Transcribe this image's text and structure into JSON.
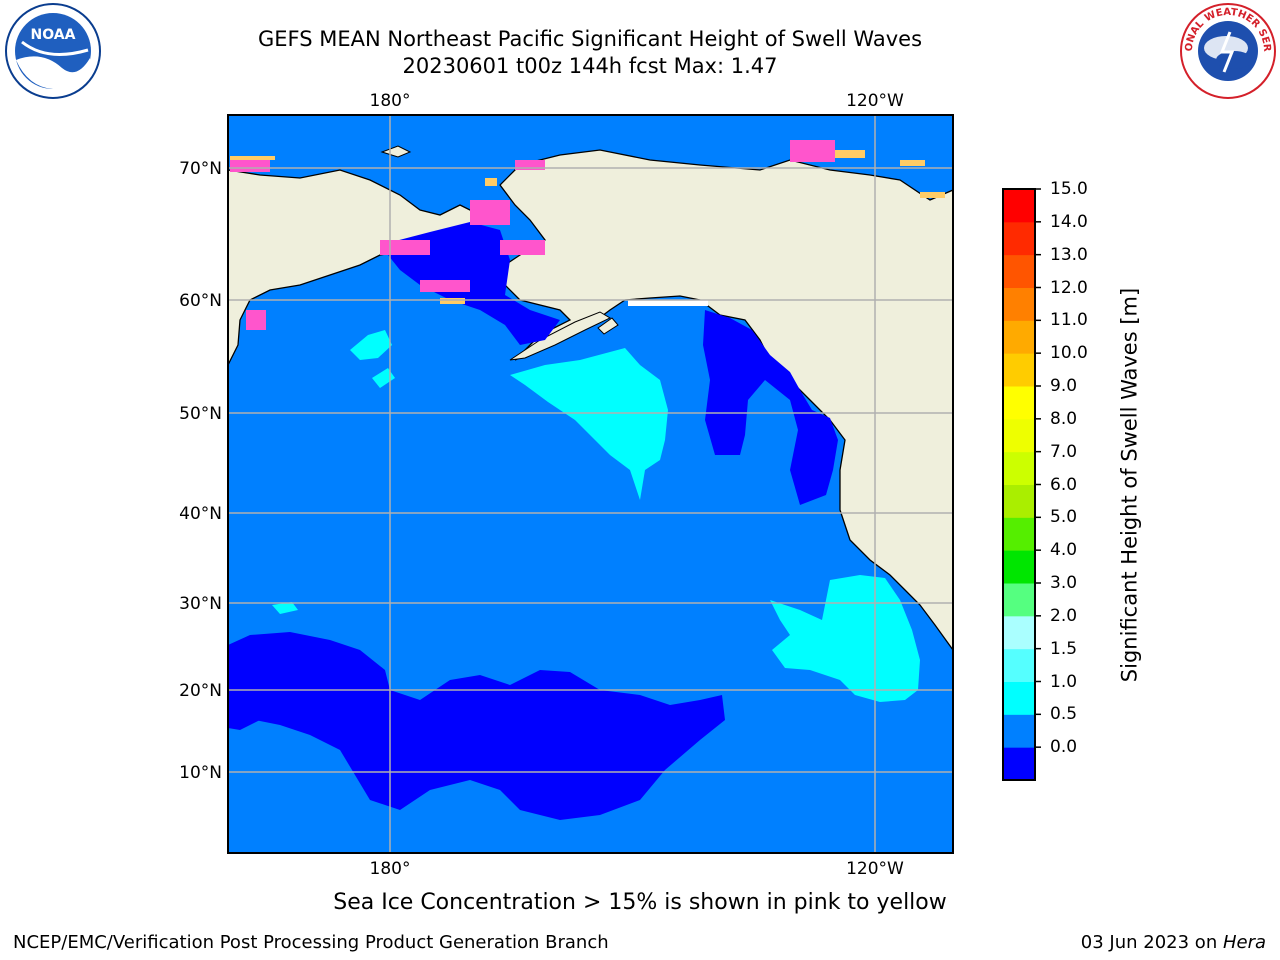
{
  "header": {
    "title_line1": "GEFS MEAN Northeast Pacific Significant Height of Swell Waves",
    "title_line2": "20230601 t00z 144h fcst   Max: 1.47"
  },
  "logos": {
    "left": "NOAA",
    "left_ring_text": "NATIONAL OCEANIC AND ATMOSPHERIC ADMINISTRATION · U.S. DEPARTMENT OF COMMERCE",
    "right_ring_text": "NATIONAL WEATHER SERVICE"
  },
  "map": {
    "lon_labels_top": [
      "180°",
      "120°W"
    ],
    "lon_labels_bottom": [
      "180°",
      "120°W"
    ],
    "lat_labels": [
      "70°N",
      "60°N",
      "50°N",
      "40°N",
      "30°N",
      "20°N",
      "10°N"
    ],
    "colors": {
      "land": "#efefdc",
      "ocean_0_5_1_0": "#0080ff",
      "ocean_0_0_0_5": "#0000ff",
      "ocean_1_0_1_5": "#00ffff",
      "ice_pink": "#ff55cc",
      "ice_yellow": "#ffcc66",
      "grid": "#b0b0b0"
    }
  },
  "colorbar": {
    "label": "Significant Height of Swell Waves [m]",
    "ticks": [
      "15.0",
      "14.0",
      "13.0",
      "12.0",
      "11.0",
      "10.0",
      "9.0",
      "8.0",
      "7.0",
      "6.0",
      "5.0",
      "4.0",
      "3.0",
      "2.0",
      "1.5",
      "1.0",
      "0.5",
      "0.0"
    ],
    "colors_bottom_to_top": [
      "#0000ff",
      "#0080ff",
      "#00ffff",
      "#55ffff",
      "#aaffff",
      "#55ff80",
      "#00e600",
      "#55ee00",
      "#aaee00",
      "#ccff00",
      "#eeff00",
      "#ffff00",
      "#ffcc00",
      "#ffaa00",
      "#ff8000",
      "#ff5500",
      "#ff2a00",
      "#ff0000"
    ]
  },
  "footer": {
    "note": "Sea Ice Concentration > 15% is shown in pink to yellow",
    "credit_left": "NCEP/EMC/Verification Post Processing Product Generation Branch",
    "date": "03 Jun 2023 on ",
    "machine": "Hera"
  }
}
